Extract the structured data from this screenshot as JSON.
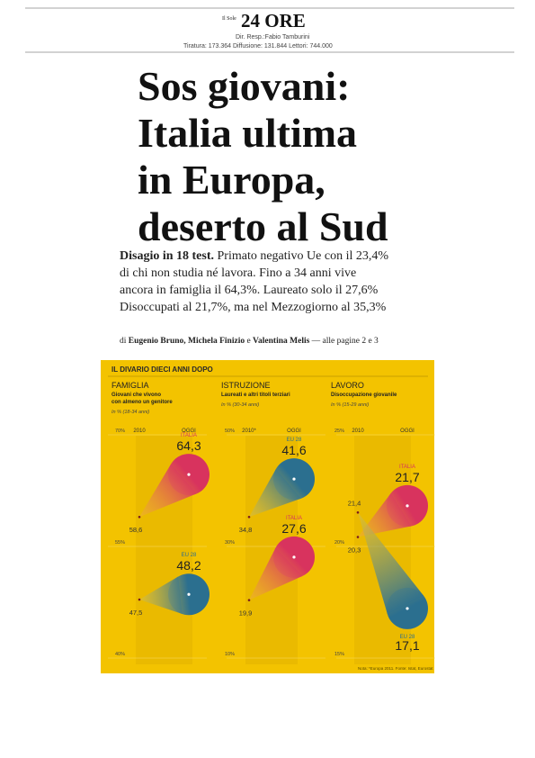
{
  "header": {
    "masthead_small": "Il Sole",
    "masthead_big": "24 ORE",
    "director": "Dir. Resp.:Fabio Tamburini",
    "circulation": "Tiratura: 173.364 Diffusione: 131.844 Lettori: 744.000"
  },
  "headline": {
    "title_lines": [
      "Sos giovani:",
      "Italia ultima",
      "in Europa,",
      "deserto al Sud"
    ],
    "lead": "Disagio in 18 test.",
    "body_lines": [
      "Primato negativo Ue con il 23,4%",
      "di chi non studia né lavora. Fino a 34 anni vive",
      "ancora in famiglia il 64,3%. Laureato solo il 27,6%",
      "Disoccupati al 21,7%, ma nel Mezzogiorno al 35,3%"
    ]
  },
  "byline": {
    "prefix": "di",
    "authors": "Eugenio Bruno, Michela Finizio",
    "conjunction": "e",
    "last_author": "Valentina Melis",
    "suffix": "— alle pagine 2 e 3"
  },
  "infographic": {
    "title": "IL DIVARIO DIECI ANNI DOPO",
    "note": "Nota: *Europa 2011. Fonte: Istat, Eurostat",
    "panels": [
      {
        "title": "FAMIGLIA",
        "subtitle_lines": [
          "Giovani che vivono",
          "con almeno un genitore"
        ],
        "unit": "In % (18-34 anni)",
        "x_labels": [
          "2010",
          "OGGI"
        ],
        "ylim": [
          40,
          70
        ],
        "yticks": [
          {
            "value": 70,
            "label": "70%"
          },
          {
            "value": 55,
            "label": "55%"
          },
          {
            "value": 40,
            "label": "40%"
          }
        ],
        "series": [
          {
            "name": "ITALIA",
            "color": "#d8335e",
            "tail_color": "#eeb238",
            "start": {
              "value": 58.6,
              "label": "58,6"
            },
            "end": {
              "value": 64.3,
              "label": "64,3"
            }
          },
          {
            "name": "EU 28",
            "color": "#2b6f8f",
            "tail_color": "#d9c04a",
            "start": {
              "value": 47.5,
              "label": "47,5"
            },
            "end": {
              "value": 48.2,
              "label": "48,2"
            }
          }
        ]
      },
      {
        "title": "ISTRUZIONE",
        "subtitle_lines": [
          "Laureati e altri titoli terziari"
        ],
        "unit": "In % (30-34 anni)",
        "x_labels": [
          "2010*",
          "OGGI"
        ],
        "ylim": [
          10,
          50
        ],
        "yticks": [
          {
            "value": 50,
            "label": "50%"
          },
          {
            "value": 30,
            "label": "30%"
          },
          {
            "value": 10,
            "label": "10%"
          }
        ],
        "series": [
          {
            "name": "EU 28",
            "color": "#2b6f8f",
            "tail_color": "#d9c04a",
            "start": {
              "value": 34.8,
              "label": "34,8"
            },
            "end": {
              "value": 41.6,
              "label": "41,6"
            }
          },
          {
            "name": "ITALIA",
            "color": "#d8335e",
            "tail_color": "#eeb238",
            "start": {
              "value": 19.9,
              "label": "19,9"
            },
            "end": {
              "value": 27.6,
              "label": "27,6"
            }
          }
        ]
      },
      {
        "title": "LAVORO",
        "subtitle_lines": [
          "Disoccupazione giovanile"
        ],
        "unit": "In % (15-29 anni)",
        "x_labels": [
          "2010",
          "OGGI"
        ],
        "ylim": [
          15,
          25
        ],
        "yticks": [
          {
            "value": 25,
            "label": "25%"
          },
          {
            "value": 20,
            "label": "20%"
          },
          {
            "value": 15,
            "label": "15%"
          }
        ],
        "series": [
          {
            "name": "ITALIA",
            "color": "#d8335e",
            "tail_color": "#eeb238",
            "start": {
              "value": 20.3,
              "label": "20,3"
            },
            "end": {
              "value": 21.7,
              "label": "21,7"
            }
          },
          {
            "name": "EU 28",
            "color": "#2b6f8f",
            "tail_color": "#d9c04a",
            "start": {
              "value": 21.4,
              "label": "21,4"
            },
            "end": {
              "value": 17.1,
              "label": "17,1"
            }
          }
        ]
      }
    ]
  }
}
